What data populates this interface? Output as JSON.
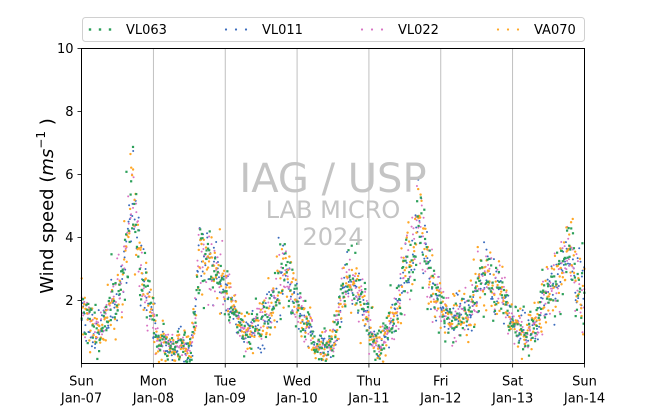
{
  "chart_data": {
    "type": "scatter",
    "ylabel_prefix": "Wind speed (",
    "ylabel_unit_base": "ms",
    "ylabel_unit_exp": "−1",
    "ylabel_suffix": " )",
    "ylim": [
      0,
      10
    ],
    "yticks": [
      "2",
      "4",
      "6",
      "8",
      "10"
    ],
    "x_start": "2024-01-07",
    "x_end": "2024-01-14",
    "xtick_days": [
      "Sun",
      "Mon",
      "Tue",
      "Wed",
      "Thu",
      "Fri",
      "Sat",
      "Sun"
    ],
    "xtick_dates": [
      "Jan-07",
      "Jan-08",
      "Jan-09",
      "Jan-10",
      "Jan-11",
      "Jan-12",
      "Jan-13",
      "Jan-14"
    ],
    "grid": "vertical lines at day boundaries",
    "legend_position": "top",
    "watermark": {
      "line1": "IAG / USP",
      "line2": "LAB MICRO",
      "line3": "2024"
    },
    "hourly_mean_wind_speed": [
      1.9,
      1.6,
      1.4,
      1.3,
      1.2,
      1.1,
      1.0,
      1.2,
      1.4,
      1.6,
      1.8,
      2.0,
      2.3,
      2.6,
      3.0,
      3.8,
      4.6,
      5.3,
      4.8,
      3.6,
      2.8,
      2.4,
      2.1,
      1.8,
      1.3,
      0.9,
      0.7,
      0.6,
      0.6,
      0.6,
      0.5,
      0.5,
      0.6,
      0.6,
      0.6,
      0.5,
      0.4,
      0.7,
      1.6,
      3.0,
      3.4,
      3.3,
      3.2,
      3.0,
      2.8,
      2.8,
      2.7,
      2.5,
      2.3,
      2.1,
      1.8,
      1.6,
      1.4,
      1.2,
      1.0,
      1.0,
      1.1,
      1.2,
      1.3,
      1.2,
      1.3,
      1.5,
      1.6,
      1.7,
      1.8,
      2.2,
      2.6,
      3.0,
      2.8,
      2.6,
      2.3,
      2.1,
      2.0,
      1.7,
      1.4,
      1.2,
      1.0,
      0.8,
      0.6,
      0.5,
      0.5,
      0.5,
      0.5,
      0.6,
      0.8,
      1.0,
      1.6,
      2.2,
      2.6,
      2.8,
      2.7,
      2.6,
      2.4,
      2.3,
      2.0,
      1.6,
      1.2,
      0.9,
      0.7,
      0.6,
      0.6,
      0.8,
      1.0,
      1.3,
      1.5,
      1.6,
      1.9,
      2.4,
      2.8,
      3.0,
      3.2,
      3.8,
      4.4,
      4.6,
      4.2,
      3.6,
      3.0,
      2.6,
      2.4,
      2.1,
      1.8,
      1.6,
      1.4,
      1.3,
      1.3,
      1.4,
      1.5,
      1.6,
      1.6,
      1.5,
      1.7,
      2.0,
      2.3,
      2.6,
      2.8,
      2.9,
      2.8,
      2.6,
      2.5,
      2.4,
      2.3,
      2.0,
      1.7,
      1.5,
      1.3,
      1.2,
      1.1,
      1.1,
      1.0,
      1.0,
      1.1,
      1.2,
      1.3,
      1.6,
      1.9,
      2.1,
      2.3,
      2.5,
      2.6,
      2.7,
      2.9,
      3.0,
      3.4,
      3.6,
      3.3,
      2.6,
      2.3,
      2.2
    ],
    "series": [
      {
        "name": "VL063",
        "color": "#2ca05a",
        "marker": "square",
        "size": 2.2,
        "noise": 0.55,
        "seed": 11
      },
      {
        "name": "VL011",
        "color": "#3a6bbd",
        "marker": "circle",
        "size": 1.0,
        "noise": 0.45,
        "seed": 23
      },
      {
        "name": "VL022",
        "color": "#d973c3",
        "marker": "circle",
        "size": 1.0,
        "noise": 0.45,
        "seed": 37
      },
      {
        "name": "VA070",
        "color": "#ffa726",
        "marker": "circle",
        "size": 1.2,
        "noise": 0.55,
        "seed": 53
      }
    ]
  }
}
